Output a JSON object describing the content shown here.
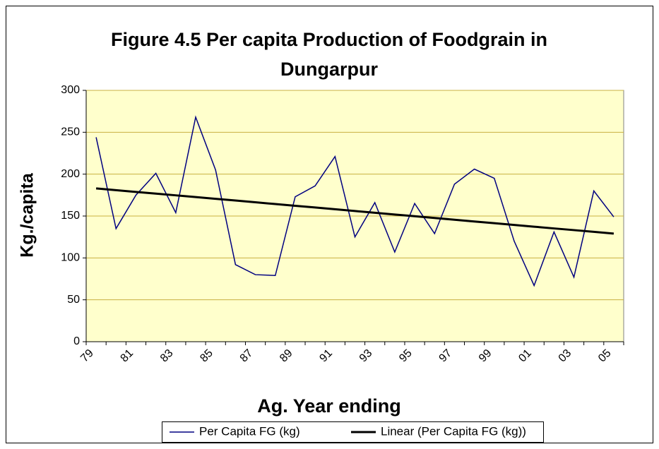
{
  "chart_data": {
    "type": "line",
    "title": [
      "Figure 4.5  Per capita Production of Foodgrain in",
      "Dungarpur"
    ],
    "x_label": "Ag. Year ending",
    "y_label": "Kg./capita",
    "categories": [
      "79",
      null,
      "81",
      null,
      "83",
      null,
      "85",
      null,
      "87",
      null,
      "89",
      null,
      "91",
      null,
      "93",
      null,
      "95",
      null,
      "97",
      null,
      "99",
      null,
      "01",
      null,
      "03",
      null,
      "05"
    ],
    "series": [
      {
        "name": "Per Capita FG (kg)",
        "color": "#000080",
        "values": [
          244,
          135,
          175,
          201,
          154,
          268,
          205,
          92,
          80,
          79,
          173,
          186,
          221,
          125,
          166,
          107,
          165,
          129,
          188,
          206,
          195,
          120,
          67,
          131,
          77,
          180,
          149
        ]
      },
      {
        "name": "Linear (Per Capita FG (kg))",
        "color": "#000000",
        "values": [
          183,
          180.9,
          178.8,
          176.8,
          174.7,
          172.6,
          170.5,
          168.5,
          166.4,
          164.3,
          162.2,
          160.2,
          158.1,
          156,
          153.9,
          151.8,
          149.8,
          147.7,
          145.6,
          143.5,
          141.5,
          139.4,
          137.3,
          135.2,
          133.2,
          131.1,
          129
        ]
      }
    ],
    "ylim": [
      0,
      300
    ],
    "yticks": [
      0,
      50,
      100,
      150,
      200,
      250,
      300
    ],
    "grid": true,
    "legend": "bottom",
    "plot_background": "#FFFFCC"
  }
}
